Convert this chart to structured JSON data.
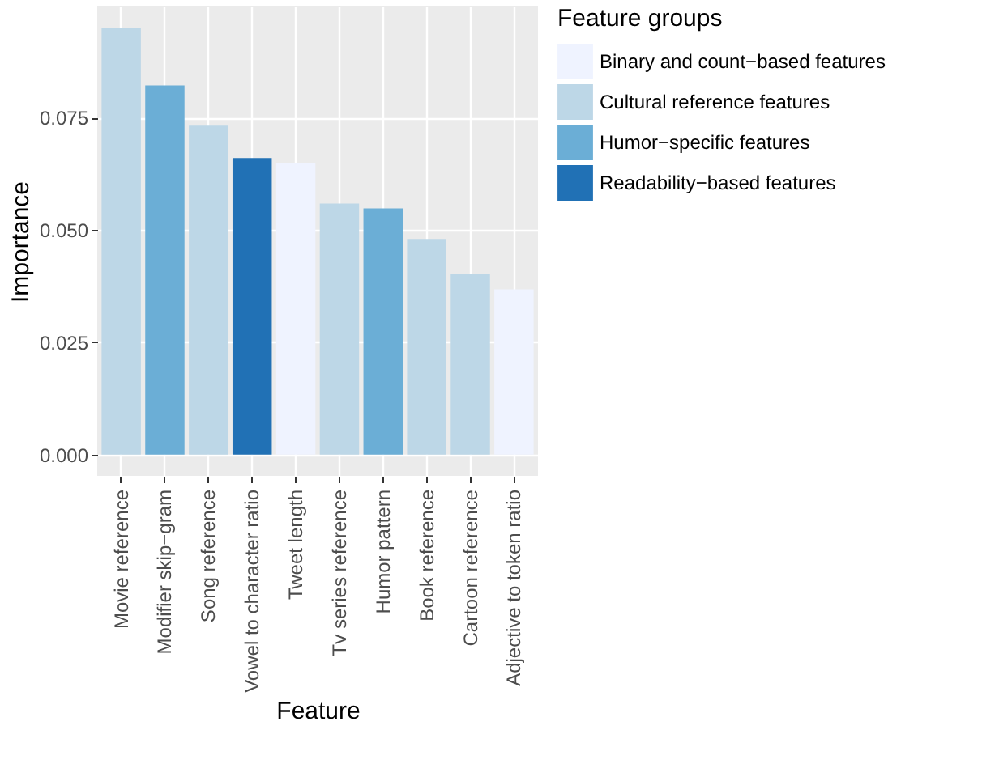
{
  "chart_data": {
    "type": "bar",
    "xlabel": "Feature",
    "ylabel": "Importance",
    "legend_title": "Feature groups",
    "categories": [
      "Movie reference",
      "Modifier skip−gram",
      "Song reference",
      "Vowel to character ratio",
      "Tweet length",
      "Tv series reference",
      "Humor pattern",
      "Book reference",
      "Cartoon reference",
      "Adjective to token ratio"
    ],
    "series": [
      {
        "name": "Binary and count−based features",
        "color": "#eff3ff",
        "values": [
          null,
          null,
          null,
          null,
          0.0649,
          null,
          null,
          null,
          null,
          0.0368
        ]
      },
      {
        "name": "Cultural reference features",
        "color": "#bdd7e7",
        "values": [
          0.095,
          null,
          0.0732,
          null,
          null,
          0.0559,
          null,
          0.048,
          0.0401,
          null
        ]
      },
      {
        "name": "Humor−specific features",
        "color": "#6baed6",
        "values": [
          null,
          0.0822,
          null,
          null,
          null,
          null,
          0.0548,
          null,
          null,
          null
        ]
      },
      {
        "name": "Readability−based features",
        "color": "#2171b5",
        "values": [
          null,
          null,
          null,
          0.066,
          null,
          null,
          null,
          null,
          null,
          null
        ]
      }
    ],
    "ylim": [
      -0.00475,
      0.09975
    ],
    "yticks": [
      {
        "value": 0,
        "label": "0.000"
      },
      {
        "value": 0.025,
        "label": "0.025"
      },
      {
        "value": 0.05,
        "label": "0.050"
      },
      {
        "value": 0.075,
        "label": "0.075"
      }
    ],
    "grid": true,
    "legend": "right"
  }
}
